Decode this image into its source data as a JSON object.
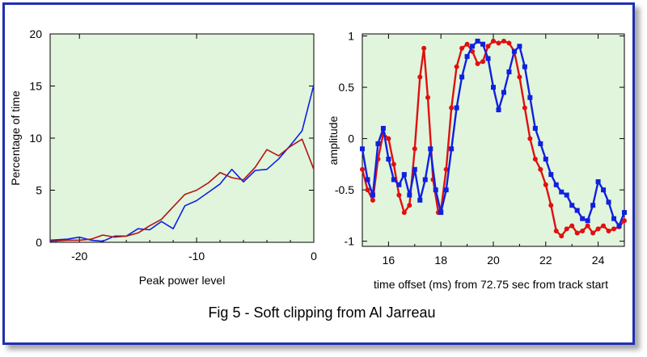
{
  "figure": {
    "caption": "Fig 5 - Soft clipping from Al Jarreau",
    "colors": {
      "frame": "#1f2fb0",
      "plot_bg": "#e0f5dc",
      "red": "#e01010",
      "blue": "#1020e0",
      "dark_red": "#b01515"
    }
  },
  "chart_data": [
    {
      "type": "line",
      "xlabel": "Peak power level",
      "ylabel": "Percentage of time",
      "xlim": [
        -22.5,
        0
      ],
      "ylim": [
        0,
        20
      ],
      "xticks": [
        -20,
        -10,
        0
      ],
      "yticks": [
        0,
        5,
        10,
        15,
        20
      ],
      "grid": false,
      "series": [
        {
          "color": "#1020e0",
          "x": [
            -22.5,
            -21,
            -20,
            -19,
            -18,
            -17,
            -16,
            -15,
            -14,
            -13,
            -12,
            -11,
            -10,
            -9,
            -8,
            -7,
            -6,
            -5,
            -4,
            -3,
            -2,
            -1,
            0
          ],
          "y": [
            0.2,
            0.3,
            0.5,
            0.2,
            0.1,
            0.6,
            0.6,
            1.3,
            1.2,
            2.0,
            1.3,
            3.5,
            4.0,
            4.8,
            5.6,
            7.0,
            5.8,
            6.9,
            7.0,
            8.0,
            9.3,
            10.7,
            15.1
          ]
        },
        {
          "color": "#b01515",
          "x": [
            -22.5,
            -21,
            -20,
            -19,
            -18,
            -17,
            -16,
            -15,
            -14,
            -13,
            -12,
            -11,
            -10,
            -9,
            -8,
            -7,
            -6,
            -5,
            -4,
            -3,
            -2,
            -1,
            0
          ],
          "y": [
            0.1,
            0.2,
            0.2,
            0.3,
            0.7,
            0.5,
            0.6,
            0.9,
            1.6,
            2.2,
            3.4,
            4.6,
            5.0,
            5.7,
            6.7,
            6.2,
            6.0,
            7.2,
            8.9,
            8.3,
            9.2,
            9.9,
            7.0
          ]
        }
      ]
    },
    {
      "type": "line",
      "xlabel": "time offset (ms) from 72.75 sec from track start",
      "ylabel": "amplitude",
      "xlim": [
        15,
        25
      ],
      "ylim": [
        -1.05,
        1.02
      ],
      "xticks": [
        16,
        18,
        20,
        22,
        24
      ],
      "yticks": [
        -1,
        -0.5,
        0,
        0.5,
        1
      ],
      "grid": false,
      "series": [
        {
          "color": "#e01010",
          "marker": "dot",
          "x": [
            15.0,
            15.2,
            15.4,
            15.6,
            15.8,
            16.0,
            16.2,
            16.4,
            16.6,
            16.8,
            17.0,
            17.2,
            17.35,
            17.5,
            17.7,
            17.9,
            18.0,
            18.2,
            18.4,
            18.6,
            18.8,
            19.0,
            19.2,
            19.4,
            19.6,
            19.8,
            20.0,
            20.2,
            20.4,
            20.6,
            20.8,
            21.0,
            21.2,
            21.4,
            21.6,
            21.8,
            22.0,
            22.2,
            22.4,
            22.6,
            22.8,
            23.0,
            23.2,
            23.4,
            23.6,
            23.8,
            24.0,
            24.2,
            24.4,
            24.6,
            24.8,
            25.0
          ],
          "y": [
            -0.3,
            -0.5,
            -0.6,
            -0.2,
            0.05,
            0.0,
            -0.25,
            -0.55,
            -0.72,
            -0.65,
            -0.1,
            0.6,
            0.88,
            0.4,
            -0.4,
            -0.72,
            -0.7,
            -0.3,
            0.3,
            0.7,
            0.88,
            0.92,
            0.85,
            0.73,
            0.75,
            0.9,
            0.95,
            0.93,
            0.95,
            0.93,
            0.85,
            0.6,
            0.3,
            0.0,
            -0.2,
            -0.3,
            -0.45,
            -0.65,
            -0.9,
            -0.95,
            -0.88,
            -0.85,
            -0.92,
            -0.9,
            -0.85,
            -0.92,
            -0.88,
            -0.85,
            -0.9,
            -0.88,
            -0.86,
            -0.8
          ]
        },
        {
          "color": "#1020e0",
          "marker": "square",
          "x": [
            15.0,
            15.2,
            15.4,
            15.6,
            15.8,
            16.0,
            16.2,
            16.4,
            16.6,
            16.8,
            17.0,
            17.2,
            17.4,
            17.6,
            17.8,
            18.0,
            18.2,
            18.4,
            18.6,
            18.8,
            19.0,
            19.2,
            19.4,
            19.6,
            19.8,
            20.0,
            20.2,
            20.4,
            20.6,
            20.8,
            21.0,
            21.2,
            21.4,
            21.6,
            21.8,
            22.0,
            22.2,
            22.4,
            22.6,
            22.8,
            23.0,
            23.2,
            23.4,
            23.6,
            23.8,
            24.0,
            24.2,
            24.4,
            24.6,
            24.8,
            25.0
          ],
          "y": [
            -0.1,
            -0.4,
            -0.55,
            -0.05,
            0.1,
            -0.2,
            -0.4,
            -0.45,
            -0.35,
            -0.55,
            -0.3,
            -0.6,
            -0.4,
            -0.1,
            -0.5,
            -0.72,
            -0.5,
            -0.1,
            0.3,
            0.6,
            0.8,
            0.9,
            0.95,
            0.92,
            0.78,
            0.5,
            0.28,
            0.45,
            0.65,
            0.85,
            0.9,
            0.7,
            0.4,
            0.1,
            -0.05,
            -0.2,
            -0.35,
            -0.45,
            -0.52,
            -0.55,
            -0.65,
            -0.7,
            -0.78,
            -0.8,
            -0.65,
            -0.42,
            -0.5,
            -0.62,
            -0.78,
            -0.85,
            -0.72
          ]
        }
      ]
    }
  ]
}
